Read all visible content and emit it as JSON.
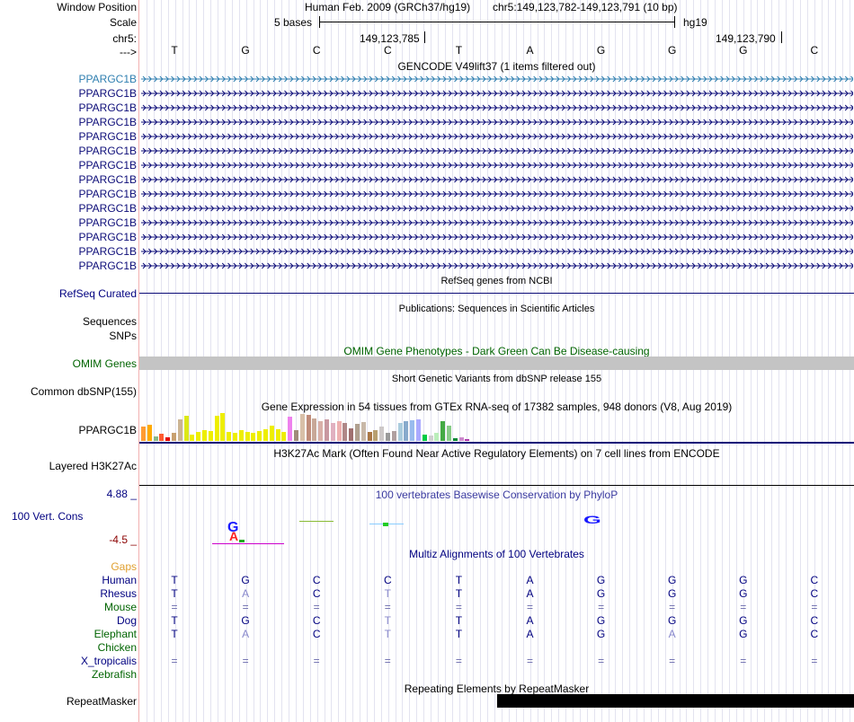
{
  "header": {
    "window_position_label": "Window Position",
    "scale_label": "Scale",
    "chrom_label": "chr5:",
    "strand_label": "--->",
    "assembly_text": "Human Feb. 2009 (GRCh37/hg19)",
    "position_text": "chr5:149,123,782-149,123,791 (10 bp)",
    "scale_text": "5 bases",
    "db_text": "hg19",
    "coord_1": "149,123,785",
    "coord_2": "149,123,790"
  },
  "bases": [
    "T",
    "G",
    "C",
    "C",
    "T",
    "A",
    "G",
    "G",
    "G",
    "C"
  ],
  "gencode": {
    "title": "GENCODE V49lift37 (1 items filtered out)",
    "genes": [
      "PPARGC1B",
      "PPARGC1B",
      "PPARGC1B",
      "PPARGC1B",
      "PPARGC1B",
      "PPARGC1B",
      "PPARGC1B",
      "PPARGC1B",
      "PPARGC1B",
      "PPARGC1B",
      "PPARGC1B",
      "PPARGC1B",
      "PPARGC1B",
      "PPARGC1B"
    ],
    "first_color": "#2f7fb0",
    "other_color": "#0c0c78"
  },
  "refseq": {
    "title": "RefSeq genes from NCBI",
    "label": "RefSeq Curated"
  },
  "publications": {
    "title": "Publications: Sequences in Scientific Articles",
    "label_1": "Sequences",
    "label_2": "SNPs"
  },
  "omim": {
    "title": "OMIM Gene Phenotypes - Dark Green Can Be Disease-causing",
    "label": "OMIM Genes"
  },
  "dbsnp": {
    "title": "Short Genetic Variants from dbSNP release 155",
    "label": "Common dbSNP(155)"
  },
  "gtex": {
    "title": "Gene Expression in 54 tissues from GTEx RNA-seq of 17382 samples, 948 donors (V8, Aug 2019)",
    "label": "PPARGC1B",
    "tissue_colors": [
      "#ff9c33",
      "#ffaa00",
      "#88b888",
      "#ff5a30",
      "#e40000",
      "#c8a070",
      "#cbb493",
      "#dce817",
      "#eeee00",
      "#eeee00",
      "#eeee00",
      "#eeee00",
      "#eeee00",
      "#eeee00",
      "#eeee00",
      "#eeee00",
      "#eeee00",
      "#eeee00",
      "#eeee00",
      "#eeee00",
      "#eeee00",
      "#eeee00",
      "#eeee00",
      "#eeee00",
      "#ee82ee",
      "#a08c7a",
      "#d8c0a8",
      "#c08c7a",
      "#c8a898",
      "#d9b0a8",
      "#c898a0",
      "#e0b0c0",
      "#eeb0b0",
      "#b08888",
      "#9f6f6f",
      "#b0a090",
      "#c8b8a8",
      "#aa7744",
      "#b8a070",
      "#cdc8c8",
      "#9a9a9a",
      "#b0a0a0",
      "#aaccdd",
      "#88aacc",
      "#99bbee",
      "#aaaaff",
      "#00cc44",
      "#d0d0d0",
      "#bbeebb",
      "#44aa44",
      "#88cc88",
      "#008833",
      "#cc88cc",
      "#aa33aa"
    ],
    "tissue_values": [
      16,
      18,
      5,
      8,
      4,
      9,
      24,
      28,
      7,
      10,
      12,
      11,
      28,
      31,
      10,
      9,
      12,
      10,
      9,
      11,
      13,
      17,
      13,
      10,
      27,
      12,
      30,
      29,
      25,
      22,
      24,
      20,
      22,
      20,
      14,
      19,
      21,
      10,
      12,
      16,
      9,
      11,
      20,
      22,
      23,
      24,
      7,
      6,
      9,
      22,
      17,
      3,
      4,
      2
    ]
  },
  "h3k27ac": {
    "title": "H3K27Ac Mark (Often Found Near Active Regulatory Elements) on 7 cell lines from ENCODE",
    "label": "Layered H3K27Ac"
  },
  "conservation": {
    "title": "100 vertebrates Basewise Conservation by PhyloP",
    "label": "100 Vert. Cons",
    "max_label": "4.88 _",
    "min_label": "-4.5 _"
  },
  "multiz": {
    "title": "Multiz Alignments of 100 Vertebrates",
    "gaps_label": "Gaps",
    "species": [
      {
        "name": "Human",
        "color": "#000080",
        "bases": [
          "T",
          "G",
          "C",
          "C",
          "T",
          "A",
          "G",
          "G",
          "G",
          "C"
        ]
      },
      {
        "name": "Rhesus",
        "color": "#000080",
        "bases": [
          "T",
          "A",
          "C",
          "T",
          "T",
          "A",
          "G",
          "G",
          "G",
          "C"
        ]
      },
      {
        "name": "Mouse",
        "color": "#006400",
        "bases": [
          "=",
          "=",
          "=",
          "=",
          "=",
          "=",
          "=",
          "=",
          "=",
          "="
        ]
      },
      {
        "name": "Dog",
        "color": "#000080",
        "bases": [
          "T",
          "G",
          "C",
          "T",
          "T",
          "A",
          "G",
          "G",
          "G",
          "C"
        ]
      },
      {
        "name": "Elephant",
        "color": "#006400",
        "bases": [
          "T",
          "A",
          "C",
          "T",
          "T",
          "A",
          "G",
          "A",
          "G",
          "C"
        ]
      },
      {
        "name": "Chicken",
        "color": "#006400",
        "bases": [
          "",
          "",
          "",
          "",
          "",
          "",
          "",
          "",
          "",
          ""
        ]
      },
      {
        "name": "X_tropicalis",
        "color": "#000080",
        "bases": [
          "=",
          "=",
          "=",
          "=",
          "=",
          "=",
          "=",
          "=",
          "=",
          "="
        ]
      },
      {
        "name": "Zebrafish",
        "color": "#006400",
        "bases": [
          "",
          "",
          "",
          "",
          "",
          "",
          "",
          "",
          "",
          ""
        ]
      }
    ]
  },
  "repeatmasker": {
    "title": "Repeating Elements by RepeatMasker",
    "label": "RepeatMasker"
  }
}
